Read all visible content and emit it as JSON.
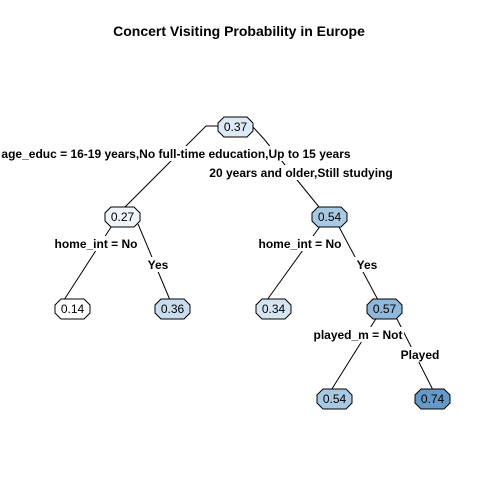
{
  "title": "Concert Visiting Probability in Europe",
  "nodes": {
    "root": {
      "value": "0.37",
      "color": "#dde9f4"
    },
    "left": {
      "value": "0.27",
      "color": "#eef4fa"
    },
    "right": {
      "value": "0.54",
      "color": "#a9c9e3"
    },
    "left_left": {
      "value": "0.14",
      "color": "#ffffff"
    },
    "left_right": {
      "value": "0.36",
      "color": "#c9dcee"
    },
    "right_left": {
      "value": "0.34",
      "color": "#d5e4f1"
    },
    "right_right": {
      "value": "0.57",
      "color": "#8fb8db"
    },
    "rr_left": {
      "value": "0.54",
      "color": "#a9c9e3"
    },
    "rr_right": {
      "value": "0.74",
      "color": "#6499c8"
    }
  },
  "splits": {
    "root_left": "age_educ = 16-19 years,No full-time education,Up to 15 years",
    "root_right": "20 years and older,Still studying",
    "left_left": "home_int = No",
    "left_right": "Yes",
    "right_left": "home_int = No",
    "right_right": "Yes",
    "rr_left": "played_m = Not",
    "rr_right": "Played"
  }
}
